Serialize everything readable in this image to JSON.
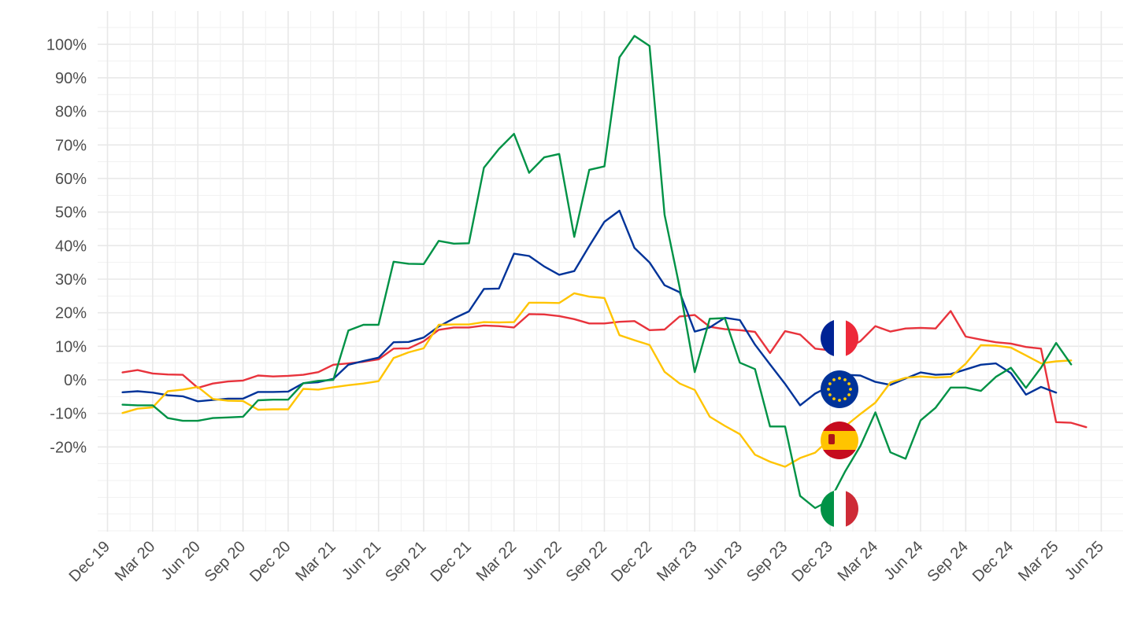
{
  "chart_data": {
    "type": "line",
    "title": "",
    "xlabel": "",
    "ylabel": "",
    "grid": true,
    "legend": "flag icons at series ends",
    "x_range": [
      "2019-12-01",
      "2025-06-01"
    ],
    "y_range": [
      -45,
      105
    ],
    "y_ticks": [
      -20,
      -10,
      0,
      10,
      20,
      30,
      40,
      50,
      60,
      70,
      80,
      90,
      100
    ],
    "y_tick_labels": [
      "-20%",
      "-10%",
      "0%",
      "10%",
      "20%",
      "30%",
      "40%",
      "50%",
      "60%",
      "70%",
      "80%",
      "90%",
      "100%"
    ],
    "x_ticks": [
      "2019-12-01",
      "2020-03-01",
      "2020-06-01",
      "2020-09-01",
      "2020-12-01",
      "2021-03-01",
      "2021-06-01",
      "2021-09-01",
      "2021-12-01",
      "2022-03-01",
      "2022-06-01",
      "2022-09-01",
      "2022-12-01",
      "2023-03-01",
      "2023-06-01",
      "2023-09-01",
      "2023-12-01",
      "2024-03-01",
      "2024-06-01",
      "2024-09-01",
      "2024-12-01",
      "2025-03-01",
      "2025-06-01"
    ],
    "x_tick_labels": [
      "Dec 19",
      "Mar 20",
      "Jun 20",
      "Sep 20",
      "Dec 20",
      "Mar 21",
      "Jun 21",
      "Sep 21",
      "Dec 21",
      "Mar 22",
      "Jun 22",
      "Sep 22",
      "Dec 22",
      "Mar 23",
      "Jun 23",
      "Sep 23",
      "Dec 23",
      "Mar 24",
      "Jun 24",
      "Sep 24",
      "Dec 24",
      "Mar 25",
      "Jun 25"
    ],
    "x_start": "2020-01-01",
    "x_step": "1 month",
    "series": [
      {
        "color": "#e8333c",
        "flag": "france-flag-icon",
        "values": [
          2.2,
          2.9,
          1.9,
          1.6,
          1.5,
          -2.4,
          -1.1,
          -0.5,
          -0.2,
          1.3,
          1.0,
          1.2,
          1.5,
          2.3,
          4.5,
          4.9,
          5.4,
          6.1,
          9.3,
          9.4,
          11.5,
          14.9,
          15.6,
          15.6,
          16.2,
          16.0,
          15.6,
          19.6,
          19.5,
          19.0,
          18.1,
          16.8,
          16.8,
          17.3,
          17.5,
          14.8,
          15.0,
          18.9,
          19.3,
          15.8,
          15.1,
          14.8,
          14.3,
          8.0,
          14.5,
          13.5,
          9.3,
          8.8,
          9.2,
          11.5,
          16.0,
          14.4,
          15.3,
          15.5,
          15.3,
          20.5,
          12.9,
          12.0,
          11.2,
          10.8,
          9.8,
          9.3,
          -12.6,
          -12.8,
          -14.1
        ]
      },
      {
        "color": "#003399",
        "flag": "eu-flag-icon",
        "values": [
          -3.7,
          -3.4,
          -3.8,
          -4.6,
          -4.9,
          -6.4,
          -6.0,
          -5.6,
          -5.6,
          -3.6,
          -3.6,
          -3.5,
          -1.0,
          -0.7,
          0.3,
          4.5,
          5.6,
          6.6,
          11.2,
          11.3,
          12.6,
          15.9,
          18.3,
          20.4,
          27.1,
          27.2,
          37.6,
          36.9,
          33.8,
          31.3,
          32.4,
          39.9,
          47.1,
          50.4,
          39.3,
          35.0,
          28.2,
          26.1,
          14.4,
          15.6,
          18.5,
          17.8,
          10.5,
          4.6,
          -1.2,
          -7.6,
          -4.1,
          -1.8,
          1.5,
          1.3,
          -0.6,
          -1.5,
          0.4,
          2.2,
          1.5,
          1.7,
          3.1,
          4.5,
          4.9,
          2.0,
          -4.4,
          -2.1,
          -3.8
        ]
      },
      {
        "color": "#ffc400",
        "flag": "spain-flag-icon",
        "values": [
          -9.9,
          -8.6,
          -8.2,
          -3.4,
          -2.9,
          -2.1,
          -5.7,
          -6.2,
          -6.3,
          -8.9,
          -8.8,
          -8.8,
          -2.7,
          -2.9,
          -2.2,
          -1.6,
          -1.1,
          -0.4,
          6.5,
          8.2,
          9.4,
          16.4,
          16.5,
          16.5,
          17.2,
          17.1,
          17.2,
          23.0,
          23.0,
          22.9,
          25.8,
          24.8,
          24.4,
          13.3,
          11.8,
          10.4,
          2.4,
          -1.1,
          -3.0,
          -11.0,
          -13.7,
          -16.2,
          -22.3,
          -24.4,
          -25.9,
          -23.3,
          -21.7,
          -17.5,
          -13.8,
          -10.2,
          -6.8,
          -0.8,
          0.6,
          1.0,
          0.7,
          0.9,
          4.8,
          10.3,
          10.2,
          9.6,
          7.3,
          4.9,
          5.5,
          5.8
        ]
      },
      {
        "color": "#009246",
        "flag": "italy-flag-icon",
        "values": [
          -7.4,
          -7.6,
          -7.6,
          -11.4,
          -12.2,
          -12.2,
          -11.4,
          -11.2,
          -11.0,
          -6.1,
          -5.9,
          -5.9,
          -1.0,
          -0.3,
          0.0,
          14.7,
          16.4,
          16.4,
          35.2,
          34.6,
          34.5,
          41.4,
          40.6,
          40.7,
          63.2,
          68.8,
          73.3,
          61.7,
          66.3,
          67.3,
          42.6,
          62.6,
          63.6,
          96.1,
          102.5,
          99.5,
          49.2,
          27.5,
          2.3,
          18.2,
          18.4,
          5.1,
          3.2,
          -13.9,
          -13.9,
          -34.6,
          -38.2,
          -35.8,
          -27.2,
          -19.7,
          -9.7,
          -21.6,
          -23.5,
          -12.1,
          -8.3,
          -2.3,
          -2.3,
          -3.3,
          0.9,
          3.6,
          -2.4,
          3.6,
          11.0,
          4.6
        ]
      }
    ]
  }
}
